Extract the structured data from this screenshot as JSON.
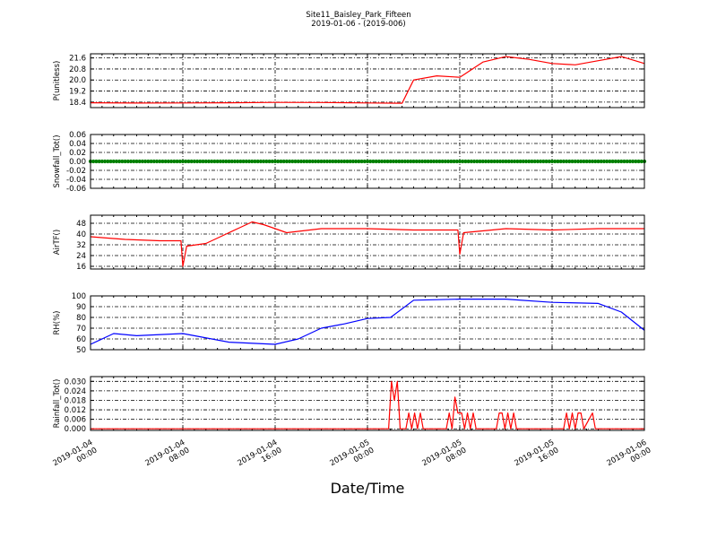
{
  "title_line1": "Site11_Baisley_Park_Fifteen",
  "title_line2": "2019-01-06 - (2019-006)",
  "xlabel": "Date/Time",
  "chart_data": [
    {
      "type": "line",
      "ylabel": "P(unitless)",
      "color": "#ff0000",
      "ylim": [
        18.0,
        21.9
      ],
      "yticks": [
        "18.4",
        "19.2",
        "20.0",
        "20.8",
        "21.6"
      ],
      "x": [
        "2019-01-04 00:00",
        "2019-01-04 04:00",
        "2019-01-04 08:00",
        "2019-01-04 12:00",
        "2019-01-04 16:00",
        "2019-01-04 20:00",
        "2019-01-05 00:00",
        "2019-01-05 03:00",
        "2019-01-05 04:00",
        "2019-01-05 06:00",
        "2019-01-05 08:00",
        "2019-01-05 10:00",
        "2019-01-05 12:00",
        "2019-01-05 14:00",
        "2019-01-05 16:00",
        "2019-01-05 18:00",
        "2019-01-05 20:00",
        "2019-01-05 22:00",
        "2019-01-06 00:00"
      ],
      "y": [
        18.35,
        18.33,
        18.34,
        18.35,
        18.38,
        18.37,
        18.34,
        18.32,
        20.0,
        20.3,
        20.2,
        21.3,
        21.7,
        21.5,
        21.2,
        21.1,
        21.4,
        21.7,
        21.2
      ]
    },
    {
      "type": "scatter",
      "ylabel": "Snowfall_Tot()",
      "color": "#008000",
      "ylim": [
        -0.06,
        0.06
      ],
      "yticks": [
        "-0.06",
        "-0.04",
        "-0.02",
        "0.00",
        "0.02",
        "0.04",
        "0.06"
      ],
      "constant_value": 0.0
    },
    {
      "type": "line",
      "ylabel": "AirTF()",
      "color": "#ff0000",
      "ylim": [
        14,
        54
      ],
      "yticks": [
        "16",
        "24",
        "32",
        "40",
        "48"
      ],
      "x": [
        "2019-01-04 00:00",
        "2019-01-04 03:00",
        "2019-01-04 06:00",
        "2019-01-04 07:50",
        "2019-01-04 08:00",
        "2019-01-04 08:20",
        "2019-01-04 10:00",
        "2019-01-04 13:00",
        "2019-01-04 14:00",
        "2019-01-04 15:00",
        "2019-01-04 16:00",
        "2019-01-04 17:00",
        "2019-01-04 20:00",
        "2019-01-05 00:00",
        "2019-01-05 04:00",
        "2019-01-05 07:50",
        "2019-01-05 08:00",
        "2019-01-05 08:20",
        "2019-01-05 12:00",
        "2019-01-05 16:00",
        "2019-01-05 20:00",
        "2019-01-06 00:00"
      ],
      "y": [
        38,
        36,
        35,
        35,
        16,
        31,
        33,
        45,
        49,
        47,
        44,
        41,
        44,
        44,
        43,
        43,
        25,
        41,
        44,
        43,
        44,
        44
      ]
    },
    {
      "type": "line",
      "ylabel": "RH(%)",
      "color": "#0000ff",
      "ylim": [
        50,
        100
      ],
      "yticks": [
        "50",
        "60",
        "70",
        "80",
        "90",
        "100"
      ],
      "x": [
        "2019-01-04 00:00",
        "2019-01-04 02:00",
        "2019-01-04 04:00",
        "2019-01-04 08:00",
        "2019-01-04 12:00",
        "2019-01-04 16:00",
        "2019-01-04 18:00",
        "2019-01-04 20:00",
        "2019-01-04 22:00",
        "2019-01-05 00:00",
        "2019-01-05 02:00",
        "2019-01-05 04:00",
        "2019-01-05 08:00",
        "2019-01-05 12:00",
        "2019-01-05 16:00",
        "2019-01-05 20:00",
        "2019-01-05 22:00",
        "2019-01-06 00:00"
      ],
      "y": [
        55,
        65,
        63,
        65,
        57,
        55,
        60,
        70,
        74,
        79,
        80,
        96,
        97,
        97,
        94,
        93,
        85,
        68
      ]
    },
    {
      "type": "line",
      "ylabel": "Rainfall_Tot()",
      "color": "#ff0000",
      "ylim": [
        -0.001,
        0.033
      ],
      "yticks": [
        "0.000",
        "0.006",
        "0.012",
        "0.018",
        "0.024",
        "0.030"
      ],
      "x": [
        "2019-01-04 00:00",
        "2019-01-05 01:50",
        "2019-01-05 02:05",
        "2019-01-05 02:20",
        "2019-01-05 02:35",
        "2019-01-05 02:50",
        "2019-01-05 03:20",
        "2019-01-05 03:35",
        "2019-01-05 03:50",
        "2019-01-05 04:05",
        "2019-01-05 04:20",
        "2019-01-05 04:35",
        "2019-01-05 04:50",
        "2019-01-05 06:50",
        "2019-01-05 07:05",
        "2019-01-05 07:20",
        "2019-01-05 07:35",
        "2019-01-05 07:50",
        "2019-01-05 08:10",
        "2019-01-05 08:25",
        "2019-01-05 08:40",
        "2019-01-05 08:55",
        "2019-01-05 09:10",
        "2019-01-05 09:25",
        "2019-01-05 11:10",
        "2019-01-05 11:25",
        "2019-01-05 11:40",
        "2019-01-05 11:55",
        "2019-01-05 12:10",
        "2019-01-05 12:25",
        "2019-01-05 12:40",
        "2019-01-05 12:55",
        "2019-01-05 13:10",
        "2019-01-05 17:00",
        "2019-01-05 17:15",
        "2019-01-05 17:30",
        "2019-01-05 17:45",
        "2019-01-05 18:00",
        "2019-01-05 18:15",
        "2019-01-05 18:30",
        "2019-01-05 18:45",
        "2019-01-05 19:30",
        "2019-01-05 19:45",
        "2019-01-06 00:00"
      ],
      "y": [
        0,
        0,
        0.03,
        0.018,
        0.03,
        0,
        0,
        0.01,
        0,
        0.01,
        0,
        0.01,
        0,
        0,
        0.01,
        0,
        0.02,
        0.01,
        0.01,
        0,
        0.01,
        0,
        0.01,
        0,
        0,
        0.01,
        0.01,
        0,
        0.01,
        0,
        0.01,
        0,
        0,
        0,
        0.01,
        0,
        0.01,
        0,
        0.01,
        0.01,
        0,
        0.01,
        0,
        0
      ]
    }
  ],
  "xticks": [
    {
      "line1": "2019-01-04",
      "line2": "00:00"
    },
    {
      "line1": "2019-01-04",
      "line2": "08:00"
    },
    {
      "line1": "2019-01-04",
      "line2": "16:00"
    },
    {
      "line1": "2019-01-05",
      "line2": "00:00"
    },
    {
      "line1": "2019-01-05",
      "line2": "08:00"
    },
    {
      "line1": "2019-01-05",
      "line2": "16:00"
    },
    {
      "line1": "2019-01-06",
      "line2": "00:00"
    }
  ],
  "x_range": [
    "2019-01-04 00:00",
    "2019-01-06 00:00"
  ]
}
